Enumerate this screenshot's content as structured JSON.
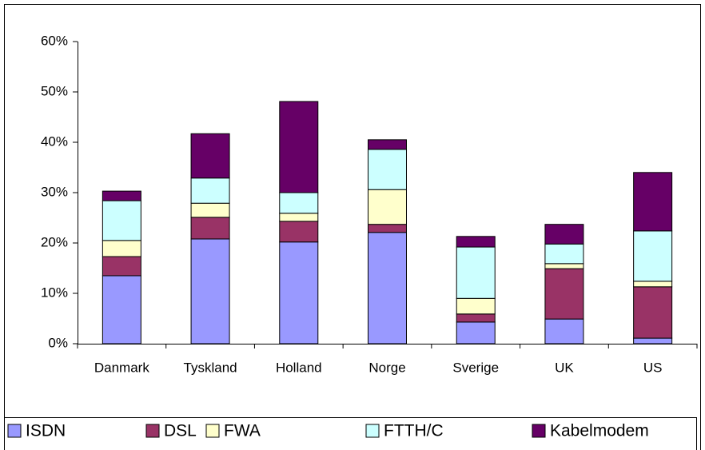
{
  "chart_data": {
    "type": "stacked_bar",
    "categories": [
      "Danmark",
      "Tyskland",
      "Holland",
      "Norge",
      "Sverige",
      "UK",
      "US"
    ],
    "series": [
      {
        "name": "ISDN",
        "color": "#9999ff",
        "values": [
          13.5,
          20.8,
          20.2,
          22.1,
          4.3,
          4.9,
          1.1
        ]
      },
      {
        "name": "DSL",
        "color": "#993366",
        "values": [
          3.8,
          4.3,
          4.1,
          1.6,
          1.6,
          10.0,
          10.2
        ]
      },
      {
        "name": "FWA",
        "color": "#ffffcc",
        "values": [
          3.2,
          2.8,
          1.6,
          6.9,
          3.1,
          1.0,
          1.1
        ]
      },
      {
        "name": "FTTH/C",
        "color": "#ccffff",
        "values": [
          7.9,
          5.0,
          4.1,
          8.0,
          10.2,
          3.9,
          10.0
        ]
      },
      {
        "name": "Kabelmodem",
        "color": "#660066",
        "values": [
          1.9,
          8.8,
          18.1,
          1.9,
          2.1,
          3.9,
          11.6
        ]
      }
    ],
    "ylim": [
      0,
      60
    ],
    "yticks": [
      {
        "value": 0,
        "label": "0%"
      },
      {
        "value": 10,
        "label": "10%"
      },
      {
        "value": 20,
        "label": "20%"
      },
      {
        "value": 30,
        "label": "30%"
      },
      {
        "value": 40,
        "label": "40%"
      },
      {
        "value": 50,
        "label": "50%"
      },
      {
        "value": 60,
        "label": "60%"
      }
    ],
    "grid": false,
    "legend": "bottom"
  }
}
